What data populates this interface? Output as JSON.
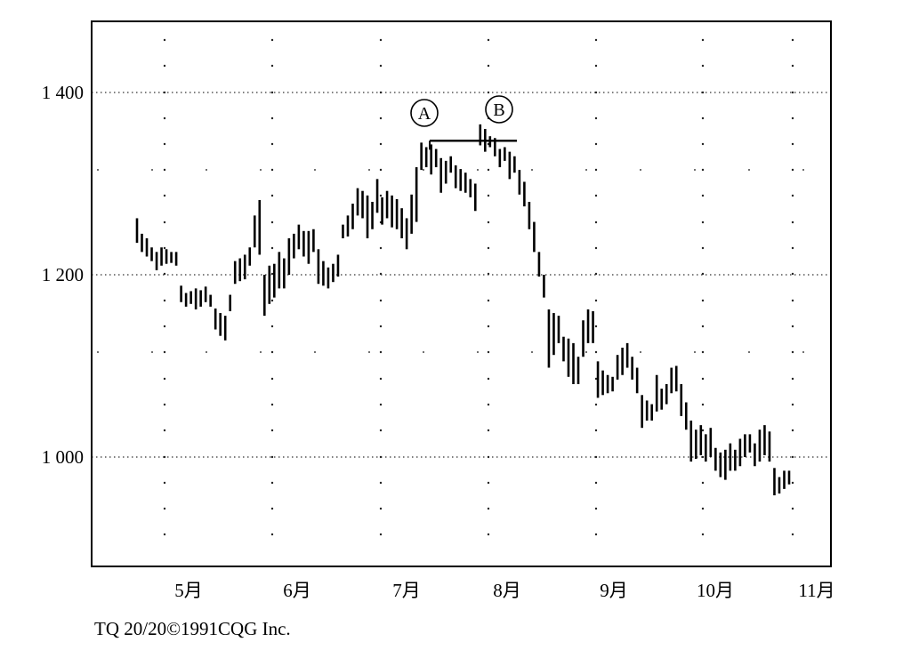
{
  "chart_data": {
    "type": "bar",
    "subtype": "ohlc",
    "title": "",
    "xlabel": "",
    "ylabel": "",
    "ylim": [
      880,
      1480
    ],
    "y_ticks": [
      1000,
      1200,
      1400
    ],
    "y_tick_labels": [
      "1 000",
      "1 200",
      "1 400"
    ],
    "x_tick_labels": [
      "5月",
      "6月",
      "7月",
      "8月",
      "9月",
      "10月",
      "11月"
    ],
    "grid": true,
    "annotations": [
      {
        "label": "A",
        "value": 1347
      },
      {
        "label": "B",
        "value": 1347
      }
    ],
    "bars": [
      [
        1262,
        1235
      ],
      [
        1245,
        1225
      ],
      [
        1240,
        1220
      ],
      [
        1230,
        1215
      ],
      [
        1225,
        1205
      ],
      [
        1230,
        1210
      ],
      [
        1228,
        1212
      ],
      [
        1225,
        1213
      ],
      [
        1225,
        1210
      ],
      [
        1188,
        1170
      ],
      [
        1180,
        1165
      ],
      [
        1182,
        1168
      ],
      [
        1185,
        1162
      ],
      [
        1183,
        1165
      ],
      [
        1187,
        1170
      ],
      [
        1178,
        1165
      ],
      [
        1163,
        1140
      ],
      [
        1158,
        1133
      ],
      [
        1155,
        1128
      ],
      [
        1178,
        1160
      ],
      [
        1215,
        1190
      ],
      [
        1218,
        1193
      ],
      [
        1222,
        1195
      ],
      [
        1230,
        1210
      ],
      [
        1265,
        1230
      ],
      [
        1282,
        1222
      ],
      [
        1200,
        1155
      ],
      [
        1210,
        1168
      ],
      [
        1212,
        1175
      ],
      [
        1225,
        1185
      ],
      [
        1218,
        1185
      ],
      [
        1240,
        1200
      ],
      [
        1245,
        1218
      ],
      [
        1255,
        1228
      ],
      [
        1248,
        1220
      ],
      [
        1248,
        1212
      ],
      [
        1250,
        1225
      ],
      [
        1228,
        1190
      ],
      [
        1215,
        1188
      ],
      [
        1208,
        1185
      ],
      [
        1212,
        1192
      ],
      [
        1222,
        1198
      ],
      [
        1255,
        1240
      ],
      [
        1265,
        1242
      ],
      [
        1278,
        1250
      ],
      [
        1295,
        1265
      ],
      [
        1292,
        1262
      ],
      [
        1287,
        1240
      ],
      [
        1280,
        1250
      ],
      [
        1305,
        1268
      ],
      [
        1285,
        1255
      ],
      [
        1292,
        1262
      ],
      [
        1287,
        1252
      ],
      [
        1283,
        1250
      ],
      [
        1273,
        1240
      ],
      [
        1262,
        1228
      ],
      [
        1288,
        1245
      ],
      [
        1318,
        1258
      ],
      [
        1345,
        1315
      ],
      [
        1340,
        1318
      ],
      [
        1343,
        1310
      ],
      [
        1338,
        1318
      ],
      [
        1328,
        1290
      ],
      [
        1325,
        1300
      ],
      [
        1330,
        1312
      ],
      [
        1320,
        1295
      ],
      [
        1316,
        1292
      ],
      [
        1312,
        1290
      ],
      [
        1305,
        1285
      ],
      [
        1300,
        1270
      ],
      [
        1365,
        1342
      ],
      [
        1360,
        1335
      ],
      [
        1352,
        1340
      ],
      [
        1350,
        1330
      ],
      [
        1338,
        1318
      ],
      [
        1340,
        1325
      ],
      [
        1335,
        1305
      ],
      [
        1330,
        1312
      ],
      [
        1315,
        1288
      ],
      [
        1302,
        1275
      ],
      [
        1280,
        1250
      ],
      [
        1258,
        1225
      ],
      [
        1225,
        1198
      ],
      [
        1200,
        1175
      ],
      [
        1162,
        1098
      ],
      [
        1158,
        1112
      ],
      [
        1155,
        1125
      ],
      [
        1132,
        1105
      ],
      [
        1130,
        1088
      ],
      [
        1125,
        1080
      ],
      [
        1110,
        1080
      ],
      [
        1150,
        1110
      ],
      [
        1162,
        1125
      ],
      [
        1160,
        1125
      ],
      [
        1105,
        1065
      ],
      [
        1095,
        1068
      ],
      [
        1090,
        1070
      ],
      [
        1088,
        1072
      ],
      [
        1112,
        1085
      ],
      [
        1120,
        1090
      ],
      [
        1125,
        1098
      ],
      [
        1110,
        1085
      ],
      [
        1098,
        1070
      ],
      [
        1068,
        1032
      ],
      [
        1062,
        1040
      ],
      [
        1058,
        1040
      ],
      [
        1090,
        1050
      ],
      [
        1075,
        1052
      ],
      [
        1080,
        1058
      ],
      [
        1098,
        1070
      ],
      [
        1100,
        1072
      ],
      [
        1080,
        1045
      ],
      [
        1060,
        1030
      ],
      [
        1040,
        995
      ],
      [
        1030,
        998
      ],
      [
        1035,
        1002
      ],
      [
        1025,
        995
      ],
      [
        1032,
        1000
      ],
      [
        1010,
        985
      ],
      [
        1005,
        978
      ],
      [
        1008,
        975
      ],
      [
        1015,
        985
      ],
      [
        1008,
        985
      ],
      [
        1020,
        990
      ],
      [
        1025,
        1000
      ],
      [
        1025,
        1005
      ],
      [
        1015,
        990
      ],
      [
        1030,
        995
      ],
      [
        1035,
        1002
      ],
      [
        1028,
        995
      ],
      [
        988,
        958
      ],
      [
        978,
        960
      ],
      [
        985,
        965
      ],
      [
        985,
        970
      ]
    ]
  },
  "footer_text": "TQ 20/20©1991CQG Inc.",
  "annotation_style": {
    "stroke": "#000000",
    "grid": "#333333"
  }
}
